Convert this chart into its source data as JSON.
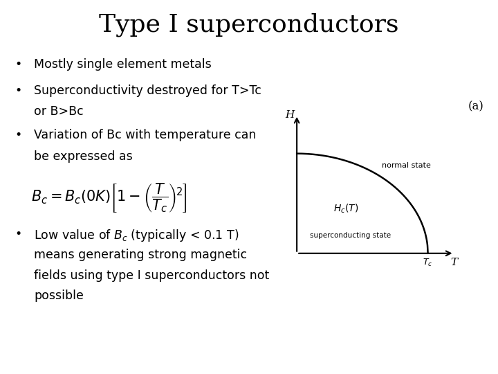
{
  "title": "Type I superconductors",
  "title_fontsize": 26,
  "title_font": "serif",
  "background_color": "#ffffff",
  "text_color": "#000000",
  "bullet1": "Mostly single element metals",
  "bullet2_line1": "Superconductivity destroyed for T>Tc",
  "bullet2_line2": "or B>Bc",
  "bullet3_line1": "Variation of Bc with temperature can",
  "bullet3_line2": "be expressed as",
  "bullet4_line1": "Low value of $B_c$ (typically < 0.1 T)",
  "bullet4_line2": "means generating strong magnetic",
  "bullet4_line3": "fields using type I superconductors not",
  "bullet4_line4": "possible",
  "formula_text": "$B_c = B_c(0K)\\left[1-\\left(\\dfrac{T}{T_c}\\right)^{\\!2}\\right]$",
  "diagram_label_H": "H",
  "diagram_label_T": "T",
  "diagram_label_Tc": "$T_c$",
  "diagram_label_Hc": "$H_c(T)$",
  "diagram_normal_state": "normal state",
  "diagram_superconducting_state": "superconducting state",
  "diagram_subfig_label": "(a)",
  "body_fontsize": 12.5,
  "formula_fontsize": 15,
  "diagram_fontsize": 9
}
